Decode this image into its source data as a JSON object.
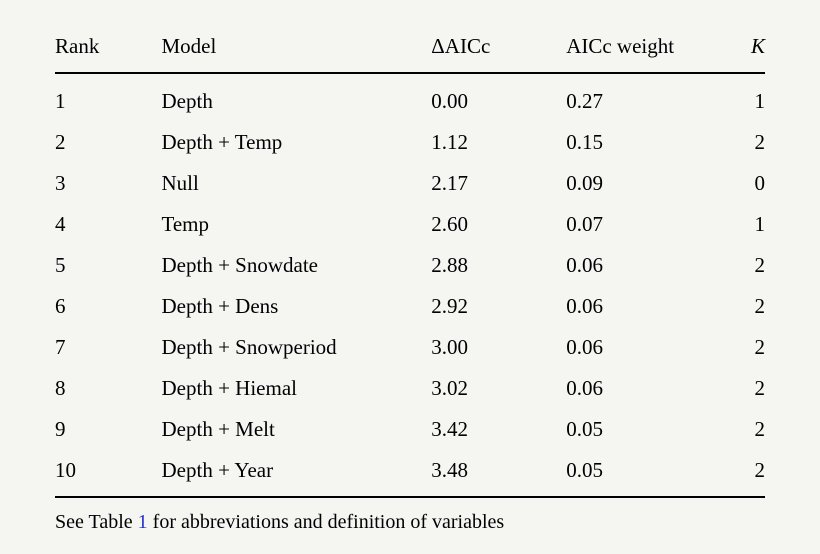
{
  "colors": {
    "background": "#f5f5f2",
    "text": "#000000",
    "link_blue": "#2233cc"
  },
  "table": {
    "columns": [
      "Rank",
      "Model",
      "ΔAICc",
      "AICc weight",
      "K"
    ],
    "rows": [
      {
        "rank": "1",
        "model": "Depth",
        "daicc": "0.00",
        "weight": "0.27",
        "k": "1"
      },
      {
        "rank": "2",
        "model": "Depth + Temp",
        "daicc": "1.12",
        "weight": "0.15",
        "k": "2"
      },
      {
        "rank": "3",
        "model": "Null",
        "daicc": "2.17",
        "weight": "0.09",
        "k": "0"
      },
      {
        "rank": "4",
        "model": "Temp",
        "daicc": "2.60",
        "weight": "0.07",
        "k": "1"
      },
      {
        "rank": "5",
        "model": "Depth + Snowdate",
        "daicc": "2.88",
        "weight": "0.06",
        "k": "2"
      },
      {
        "rank": "6",
        "model": "Depth + Dens",
        "daicc": "2.92",
        "weight": "0.06",
        "k": "2"
      },
      {
        "rank": "7",
        "model": "Depth + Snowperiod",
        "daicc": "3.00",
        "weight": "0.06",
        "k": "2"
      },
      {
        "rank": "8",
        "model": "Depth + Hiemal",
        "daicc": "3.02",
        "weight": "0.06",
        "k": "2"
      },
      {
        "rank": "9",
        "model": "Depth + Melt",
        "daicc": "3.42",
        "weight": "0.05",
        "k": "2"
      },
      {
        "rank": "10",
        "model": "Depth + Year",
        "daicc": "3.48",
        "weight": "0.05",
        "k": "2"
      }
    ]
  },
  "footnote": {
    "prefix": "See Table ",
    "link": "1",
    "suffix": " for abbreviations and definition of variables"
  }
}
